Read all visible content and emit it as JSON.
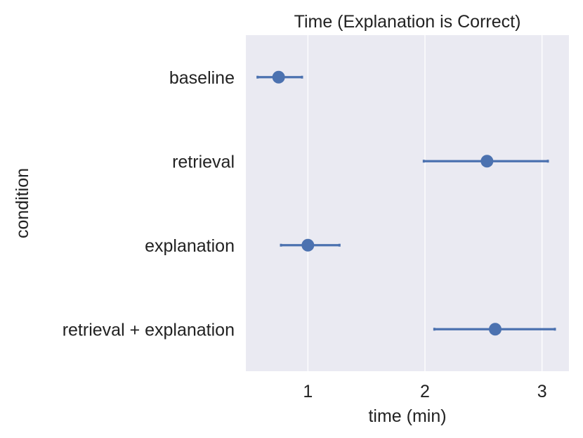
{
  "chart_data": {
    "type": "pointplot",
    "title": "Time (Explanation is Correct)",
    "xlabel": "time (min)",
    "ylabel": "condition",
    "xlim": [
      0.47,
      3.23
    ],
    "xticks": [
      1,
      2,
      3
    ],
    "xtick_labels": [
      "1",
      "2",
      "3"
    ],
    "grid": "vertical",
    "categories": [
      "baseline",
      "retrieval",
      "explanation",
      "retrieval + explanation"
    ],
    "series": [
      {
        "values": [
          0.75,
          2.53,
          1.0,
          2.6
        ],
        "ci_low": [
          0.57,
          1.99,
          0.77,
          2.08
        ],
        "ci_high": [
          0.95,
          3.05,
          1.27,
          3.11
        ]
      }
    ],
    "colors": {
      "plot_background": "#eaeaf2",
      "grid": "#ffffff",
      "point": "#4c72b0",
      "text": "#222222"
    }
  }
}
